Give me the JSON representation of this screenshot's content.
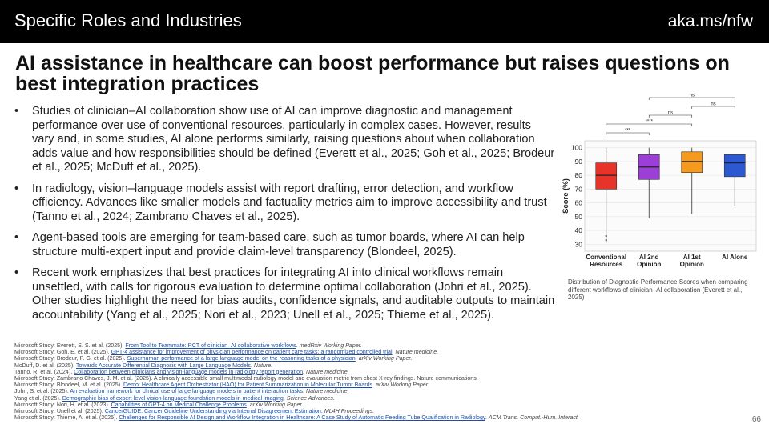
{
  "header": {
    "section": "Specific Roles and Industries",
    "link": "aka.ms/nfw"
  },
  "title": "AI assistance in healthcare can boost performance but raises questions on best integration practices",
  "bullets": [
    "Studies of clinician–AI collaboration show use of AI can improve diagnostic and management performance over use of conventional resources, particularly in complex cases. However, results vary and, in some studies, AI alone performs similarly, raising questions about when collaboration adds value and how responsibilities should be defined (Everett et al., 2025; Goh et al., 2025; Brodeur et al., 2025; McDuff et al., 2025).",
    "In radiology, vision–language models assist with report drafting, error detection, and workflow efficiency. Advances like smaller models and factuality metrics aim to improve accessibility and trust (Tanno et al., 2024; Zambrano Chaves et al., 2025).",
    "Agent-based tools are emerging for team-based care, such as tumor boards, where AI can help structure multi-expert input and provide claim-level transparency (Blondeel, 2025).",
    "Recent work emphasizes that best practices for integrating AI into clinical workflows remain unsettled, with calls for rigorous evaluation to determine optimal collaboration (Johri et al., 2025). Other studies highlight the need for bias audits, confidence signals, and auditable outputs to maintain accountability (Yang et al., 2025; Nori et al., 2023; Unell et al., 2025; Thieme et al., 2025)."
  ],
  "bullet_symbol": "•",
  "references": [
    {
      "pre": "Microsoft Study: Everett, S. S. et al. (2025). ",
      "link": "From Tool to Teammate: RCT of clinician–AI collaborative workflows",
      "post": ". ",
      "journal": "medRxiv Working Paper."
    },
    {
      "pre": "Microsoft Study: Goh, E. et al. (2025). ",
      "link": "GPT-4 assistance for improvement of physician performance on patient care tasks: a randomized controlled trial",
      "post": ". ",
      "journal": "Nature medicine."
    },
    {
      "pre": "Microsoft Study: Brodeur, P. G. et al. (2025). ",
      "link": "Superhuman performance of a large language model on the reasoning tasks of a physician",
      "post": ". ",
      "journal": "arXiv Working Paper."
    },
    {
      "pre": "McDuff, D. et al. (2025). ",
      "link": "Towards Accurate Differential Diagnosis with Large Language Models",
      "post": ". ",
      "journal": "Nature."
    },
    {
      "pre": "Tanno, R. et al. (2024). ",
      "link": "Collaboration between clinicians and vision-language models in radiology report generation",
      "post": ". ",
      "journal": "Nature medicine."
    },
    {
      "pre": "Microsoft Study: Zambrano Chaves, J. M. et al. (2025). A clinically accessible small multimodal radiology model and evaluation metric from chest X-ray findings. Nature communications.",
      "link": "",
      "post": "",
      "journal": ""
    },
    {
      "pre": "Microsoft Study: Blondeel, M. et al. (2025). ",
      "link": "Demo: Healthcare Agent Orchestrator (HAO) for Patient Summarization in Molecular Tumor Boards",
      "post": ". ",
      "journal": "arXiv Working Paper."
    },
    {
      "pre": "Johri, S. et al. (2025). ",
      "link": "An evaluation framework for clinical use of large language models in patient interaction tasks",
      "post": ". ",
      "journal": "Nature medicine."
    },
    {
      "pre": "Yang et al. (2025). ",
      "link": "Demographic bias of expert-level vision-language foundation models in medical imaging",
      "post": ". ",
      "journal": "Science Advances."
    },
    {
      "pre": "Microsoft Study: Nori, H. et al. (2023). ",
      "link": "Capabilities of GPT-4 on Medical Challenge Problems",
      "post": ". ",
      "journal": "arXiv Working Paper."
    },
    {
      "pre": "Microsoft Study: Unell et al. (2025). ",
      "link": "CancerGUIDE: Cancer Guideline Understanding via Internal Disagreement Estimation",
      "post": ". ",
      "journal": "ML4H Proceedings."
    },
    {
      "pre": "Microsoft Study: Thieme, A. et al. (2025). ",
      "link": "Challenges for Responsible AI Design and Workflow Integration in Healthcare: A Case Study of Automatic Feeding Tube Qualification in Radiology",
      "post": ". ",
      "journal": "ACM Trans. Comput.-Hum. Interact."
    }
  ],
  "figure_caption": "Distribution of Diagnostic Performance Scores when comparing different workflows of clinician–AI collaboration (Everett et al., 2025)",
  "page_number": "66",
  "colors": {
    "bar_bg": "#000000",
    "link": "#1f4fa3"
  },
  "chart_data": {
    "type": "box",
    "ylabel": "Score (%)",
    "ylim": [
      25,
      105
    ],
    "yticks": [
      30,
      40,
      50,
      60,
      70,
      80,
      90,
      100
    ],
    "categories": [
      "Conventional\nResources",
      "AI 2nd\nOpinion",
      "AI 1st\nOpinion",
      "AI Alone"
    ],
    "colors": [
      "#e8332a",
      "#9b3fd6",
      "#f59a1c",
      "#2c59d2"
    ],
    "boxes": [
      {
        "whisker_low": 31,
        "q1": 70,
        "median": 80,
        "q3": 89,
        "whisker_high": 100,
        "outliers": [
          33,
          36
        ]
      },
      {
        "whisker_low": 49,
        "q1": 77,
        "median": 86,
        "q3": 95,
        "whisker_high": 100,
        "outliers": []
      },
      {
        "whisker_low": 52,
        "q1": 82,
        "median": 90,
        "q3": 97,
        "whisker_high": 100,
        "outliers": []
      },
      {
        "whisker_low": 58,
        "q1": 79,
        "median": 89,
        "q3": 95,
        "whisker_high": 95,
        "outliers": []
      }
    ],
    "significance": [
      {
        "from": 0,
        "to": 1,
        "label": "***"
      },
      {
        "from": 0,
        "to": 2,
        "label": "****"
      },
      {
        "from": 1,
        "to": 2,
        "label": "ns"
      },
      {
        "from": 2,
        "to": 3,
        "label": "ns"
      },
      {
        "from": 1,
        "to": 3,
        "label": "ns"
      }
    ]
  }
}
